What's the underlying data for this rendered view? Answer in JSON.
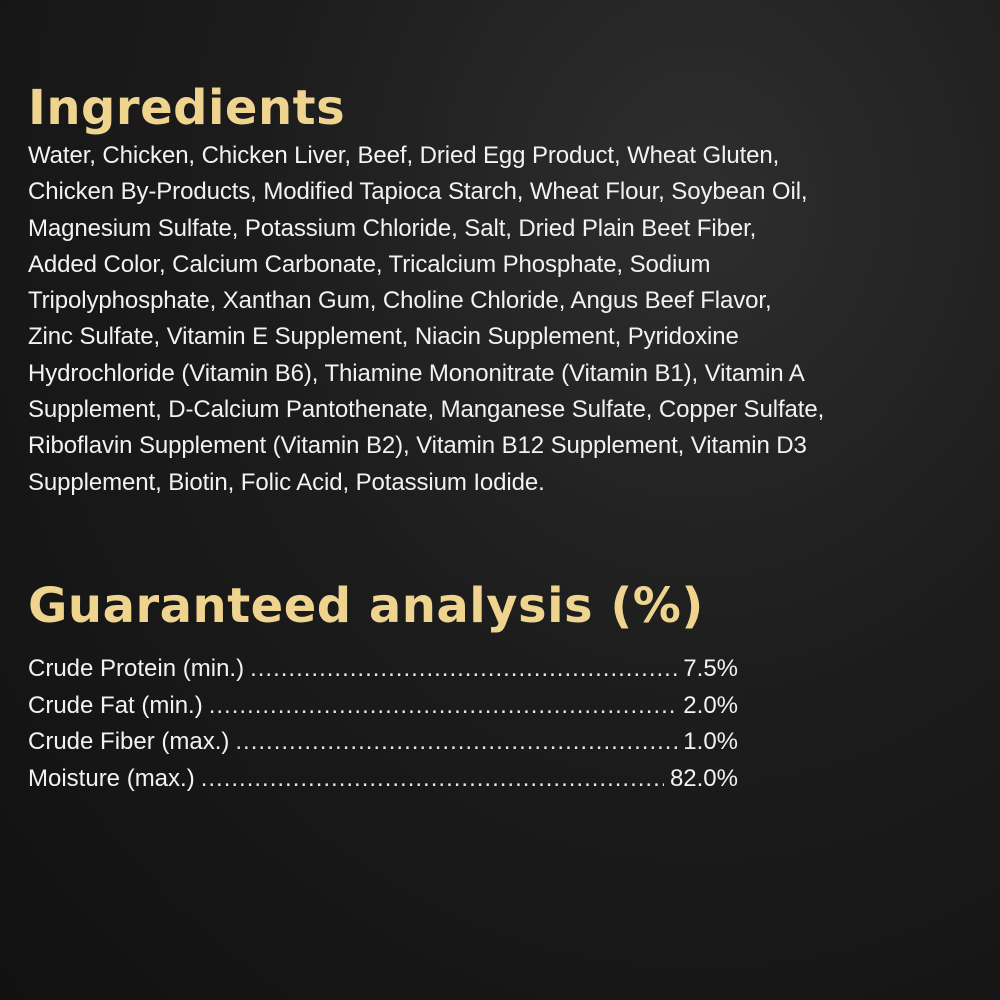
{
  "ingredients": {
    "title": "Ingredients",
    "lines": [
      "Water, Chicken, Chicken Liver, Beef, Dried Egg Product, Wheat Gluten,",
      "Chicken By-Products, Modified Tapioca Starch, Wheat Flour, Soybean Oil,",
      "Magnesium Sulfate, Potassium Chloride, Salt, Dried Plain Beet Fiber,",
      "Added Color, Calcium Carbonate, Tricalcium Phosphate, Sodium",
      "Tripolyphosphate, Xanthan Gum, Choline Chloride, Angus Beef Flavor,",
      "Zinc Sulfate, Vitamin E Supplement, Niacin Supplement, Pyridoxine",
      "Hydrochloride (Vitamin B6), Thiamine Mononitrate (Vitamin B1), Vitamin A",
      "Supplement, D-Calcium Pantothenate, Manganese Sulfate, Copper Sulfate,",
      "Riboflavin Supplement (Vitamin B2), Vitamin B12 Supplement, Vitamin D3",
      "Supplement, Biotin, Folic Acid, Potassium Iodide."
    ]
  },
  "analysis": {
    "title": "Guaranteed analysis (%)",
    "rows": [
      {
        "label": "Crude Protein (min.)",
        "value": "7.5%"
      },
      {
        "label": "Crude Fat (min.)",
        "value": "2.0%"
      },
      {
        "label": "Crude Fiber (max.)",
        "value": "1.0%"
      },
      {
        "label": "Moisture (max.)",
        "value": "82.0%"
      }
    ]
  },
  "colors": {
    "heading": "#eed48e",
    "text": "#f2f2f2",
    "background": "#1c1c1c"
  }
}
